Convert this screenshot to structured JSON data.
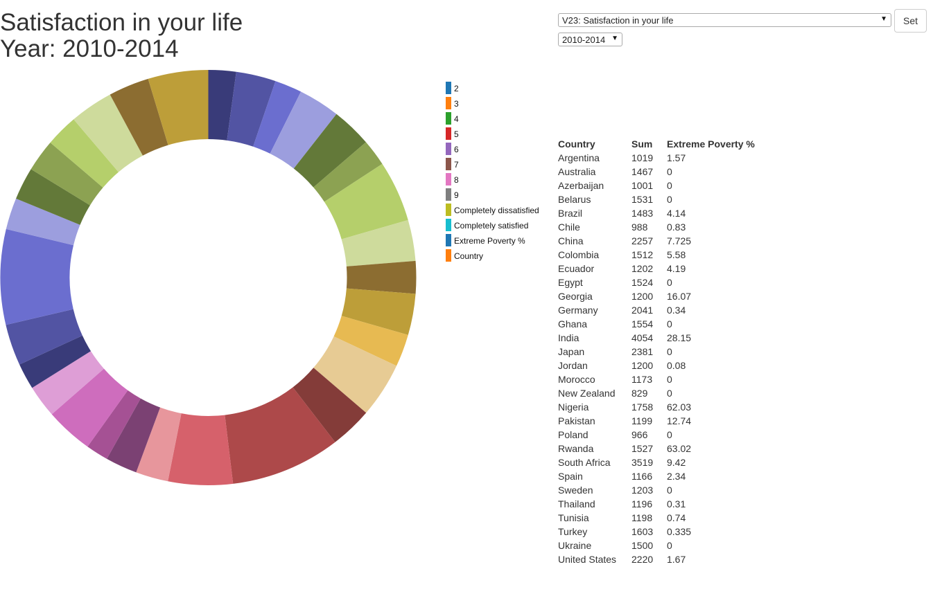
{
  "header": {
    "title": "Satisfaction in your life",
    "year_line": "Year: 2010-2014"
  },
  "controls": {
    "variable_select": "V23: Satisfaction in your life",
    "year_select": "2010-2014",
    "set_button": "Set"
  },
  "legend": [
    {
      "label": "2",
      "color": "#1f77b4"
    },
    {
      "label": "3",
      "color": "#ff7f0e"
    },
    {
      "label": "4",
      "color": "#2ca02c"
    },
    {
      "label": "5",
      "color": "#d62728"
    },
    {
      "label": "6",
      "color": "#9467bd"
    },
    {
      "label": "7",
      "color": "#8c564b"
    },
    {
      "label": "8",
      "color": "#e377c2"
    },
    {
      "label": "9",
      "color": "#7f7f7f"
    },
    {
      "label": "Completely dissatisfied",
      "color": "#bcbd22"
    },
    {
      "label": "Completely satisfied",
      "color": "#17becf"
    },
    {
      "label": "Extreme Poverty %",
      "color": "#1f77b4"
    },
    {
      "label": "Country",
      "color": "#ff7f0e"
    }
  ],
  "table": {
    "headers": [
      "Country",
      "Sum",
      "Extreme Poverty %"
    ],
    "rows": [
      [
        "Argentina",
        "1019",
        "1.57"
      ],
      [
        "Australia",
        "1467",
        "0"
      ],
      [
        "Azerbaijan",
        "1001",
        "0"
      ],
      [
        "Belarus",
        "1531",
        "0"
      ],
      [
        "Brazil",
        "1483",
        "4.14"
      ],
      [
        "Chile",
        "988",
        "0.83"
      ],
      [
        "China",
        "2257",
        "7.725"
      ],
      [
        "Colombia",
        "1512",
        "5.58"
      ],
      [
        "Ecuador",
        "1202",
        "4.19"
      ],
      [
        "Egypt",
        "1524",
        "0"
      ],
      [
        "Georgia",
        "1200",
        "16.07"
      ],
      [
        "Germany",
        "2041",
        "0.34"
      ],
      [
        "Ghana",
        "1554",
        "0"
      ],
      [
        "India",
        "4054",
        "28.15"
      ],
      [
        "Japan",
        "2381",
        "0"
      ],
      [
        "Jordan",
        "1200",
        "0.08"
      ],
      [
        "Morocco",
        "1173",
        "0"
      ],
      [
        "New Zealand",
        "829",
        "0"
      ],
      [
        "Nigeria",
        "1758",
        "62.03"
      ],
      [
        "Pakistan",
        "1199",
        "12.74"
      ],
      [
        "Poland",
        "966",
        "0"
      ],
      [
        "Rwanda",
        "1527",
        "63.02"
      ],
      [
        "South Africa",
        "3519",
        "9.42"
      ],
      [
        "Spain",
        "1166",
        "2.34"
      ],
      [
        "Sweden",
        "1203",
        "0"
      ],
      [
        "Thailand",
        "1196",
        "0.31"
      ],
      [
        "Tunisia",
        "1198",
        "0.74"
      ],
      [
        "Turkey",
        "1603",
        "0.335"
      ],
      [
        "Ukraine",
        "1500",
        "0"
      ],
      [
        "United States",
        "2220",
        "1.67"
      ]
    ]
  },
  "chart_data": {
    "type": "pie",
    "variant": "donut",
    "title": "",
    "slices": [
      {
        "value": 1019,
        "color": "#393b79"
      },
      {
        "value": 1467,
        "color": "#5254a3"
      },
      {
        "value": 1001,
        "color": "#6b6ecf"
      },
      {
        "value": 1531,
        "color": "#9c9ede"
      },
      {
        "value": 1483,
        "color": "#637939"
      },
      {
        "value": 988,
        "color": "#8ca252"
      },
      {
        "value": 2257,
        "color": "#b5cf6b"
      },
      {
        "value": 1512,
        "color": "#cedb9c"
      },
      {
        "value": 1202,
        "color": "#8c6d31"
      },
      {
        "value": 1524,
        "color": "#bd9e39"
      },
      {
        "value": 1200,
        "color": "#e7ba52"
      },
      {
        "value": 2041,
        "color": "#e7cb94"
      },
      {
        "value": 1554,
        "color": "#843c39"
      },
      {
        "value": 4054,
        "color": "#ad494a"
      },
      {
        "value": 2381,
        "color": "#d6616b"
      },
      {
        "value": 1200,
        "color": "#e7969c"
      },
      {
        "value": 1173,
        "color": "#7b4173"
      },
      {
        "value": 829,
        "color": "#a55194"
      },
      {
        "value": 1758,
        "color": "#ce6dbd"
      },
      {
        "value": 1199,
        "color": "#de9ed6"
      },
      {
        "value": 966,
        "color": "#393b79"
      },
      {
        "value": 1527,
        "color": "#5254a3"
      },
      {
        "value": 3519,
        "color": "#6b6ecf"
      },
      {
        "value": 1166,
        "color": "#9c9ede"
      },
      {
        "value": 1203,
        "color": "#637939"
      },
      {
        "value": 1196,
        "color": "#8ca252"
      },
      {
        "value": 1198,
        "color": "#b5cf6b"
      },
      {
        "value": 1603,
        "color": "#cedb9c"
      },
      {
        "value": 1500,
        "color": "#8c6d31"
      },
      {
        "value": 2220,
        "color": "#bd9e39"
      }
    ],
    "legend_position": "right"
  }
}
